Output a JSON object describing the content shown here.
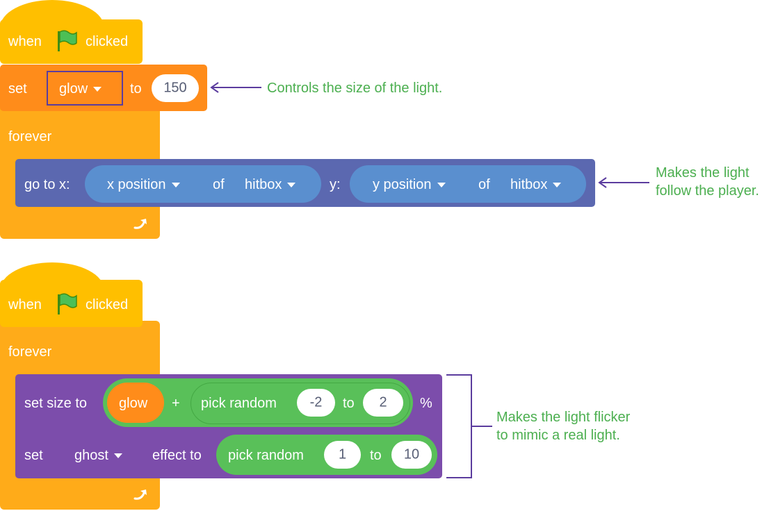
{
  "script1": {
    "hat_when": "when",
    "hat_clicked": "clicked",
    "set_label": "set",
    "set_var": "glow",
    "set_to": "to",
    "set_value": "150",
    "forever_label": "forever",
    "goto_label": "go to x:",
    "goto_x_prop": "x position",
    "goto_x_of": "of",
    "goto_x_obj": "hitbox",
    "goto_y_label": "y:",
    "goto_y_prop": "y position",
    "goto_y_of": "of",
    "goto_y_obj": "hitbox"
  },
  "script2": {
    "hat_when": "when",
    "hat_clicked": "clicked",
    "forever_label": "forever",
    "setsize_label": "set size to",
    "setsize_var": "glow",
    "setsize_plus": "+",
    "setsize_pick": "pick random",
    "setsize_from": "-2",
    "setsize_to": "to",
    "setsize_to_val": "2",
    "setsize_pct": "%",
    "seteffect_label": "set",
    "seteffect_effect": "ghost",
    "seteffect_to": "effect to",
    "seteffect_pick": "pick random",
    "seteffect_from": "1",
    "seteffect_to_word": "to",
    "seteffect_to_val": "10"
  },
  "annotations": {
    "a1": "Controls the size of the light.",
    "a2_line1": "Makes the light",
    "a2_line2": "follow the player.",
    "a3_line1": "Makes the light flicker",
    "a3_line2": "to mimic a real light."
  },
  "colors": {
    "events": "#ffbf00",
    "control": "#ffab19",
    "variables": "#ff8c1a",
    "motion": "#5b68b0",
    "sensing": "#5cb1d6",
    "looks": "#7c4dab",
    "operators": "#59c059",
    "annotation": "#4caf50",
    "arrow": "#5b3c9e"
  },
  "icons": [
    "green-flag-icon",
    "repeat-arrow-icon",
    "dropdown-caret-icon",
    "left-arrow-icon",
    "bracket-icon"
  ]
}
